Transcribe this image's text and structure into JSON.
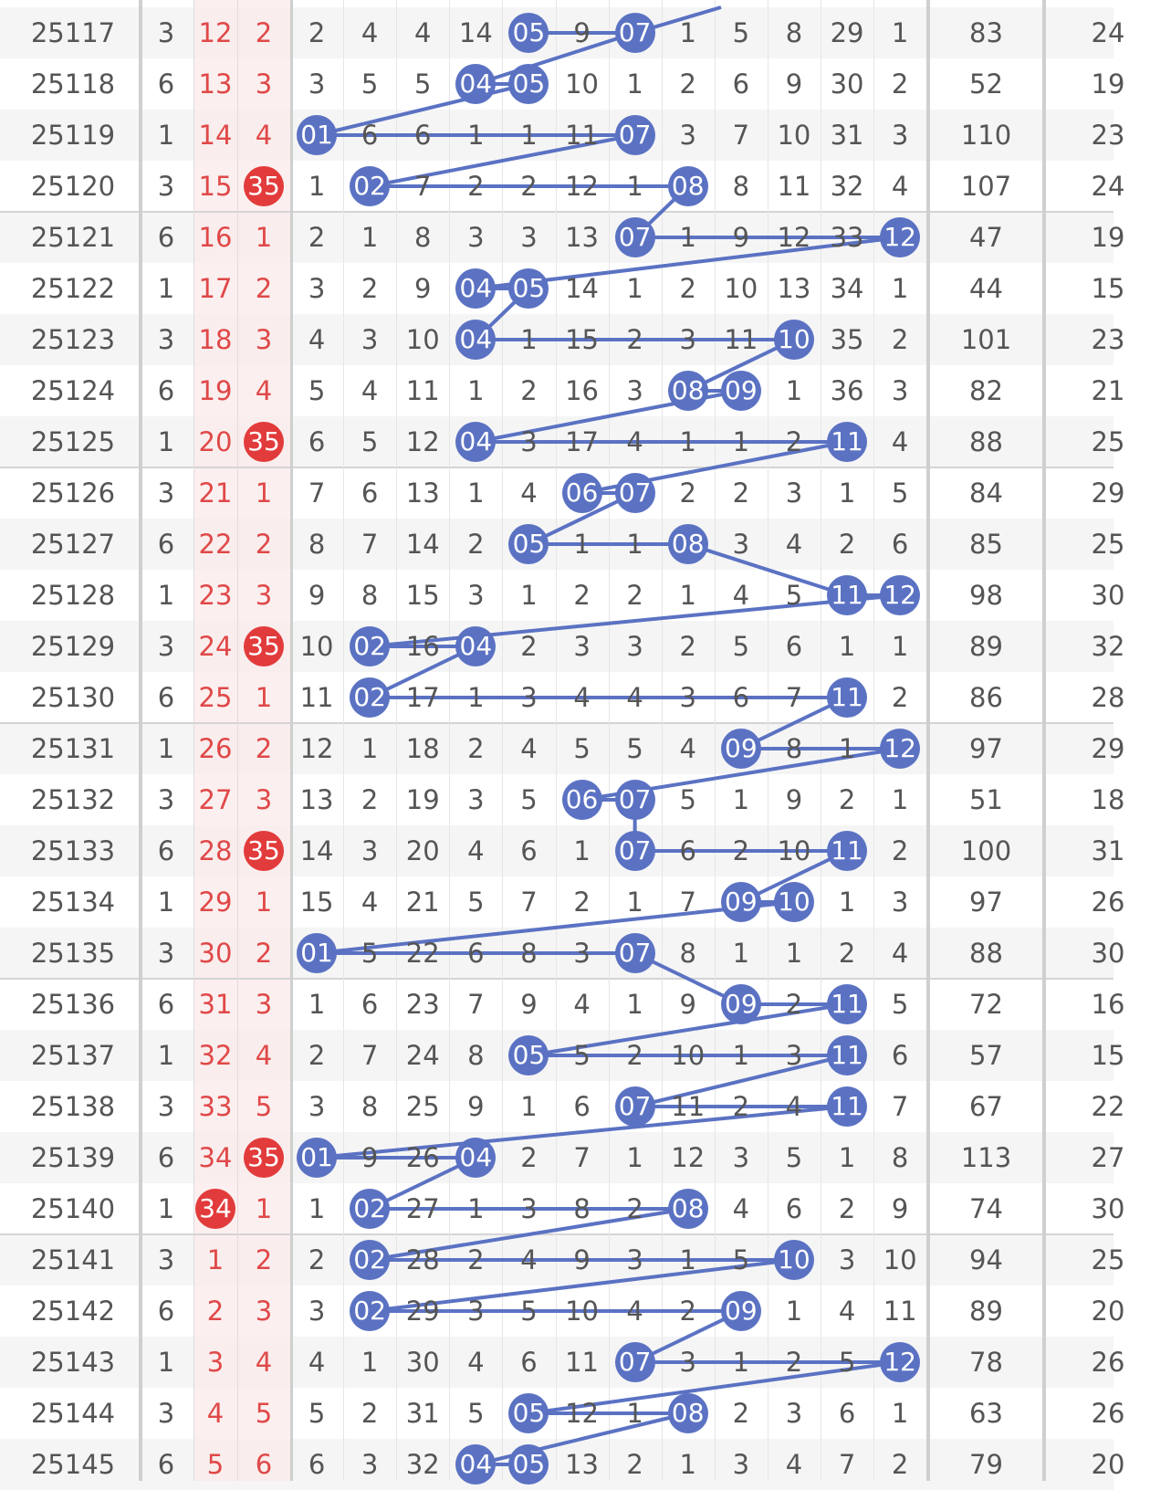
{
  "colors": {
    "blue_ball": "#5b72c3",
    "red_ball": "#e23b3b",
    "red_text": "#e04848",
    "pink_band": "#fbe9ea",
    "row_alt": "#f5f5f5",
    "text": "#555555",
    "line": "#5b72c3"
  },
  "rows": [
    {
      "issue": "25117",
      "a": "3",
      "b": "12",
      "c": "2",
      "hot": [
        1
      ],
      "cells": [
        "2",
        "4",
        "4",
        "14",
        "05",
        "9",
        "07",
        "1",
        "5",
        "8",
        "29",
        "1"
      ],
      "balls": [
        4,
        6
      ],
      "sum": "83",
      "tail": "24"
    },
    {
      "issue": "25118",
      "a": "6",
      "b": "13",
      "c": "3",
      "cells": [
        "3",
        "5",
        "5",
        "04",
        "05",
        "10",
        "1",
        "2",
        "6",
        "9",
        "30",
        "2"
      ],
      "balls": [
        3,
        4
      ],
      "sum": "52",
      "tail": "19"
    },
    {
      "issue": "25119",
      "a": "1",
      "b": "14",
      "c": "4",
      "cells": [
        "01",
        "6",
        "6",
        "1",
        "1",
        "11",
        "07",
        "3",
        "7",
        "10",
        "31",
        "3"
      ],
      "balls": [
        0,
        6
      ],
      "sum": "110",
      "tail": "23"
    },
    {
      "issue": "25120",
      "a": "3",
      "b": "15",
      "c": "35",
      "cBall": true,
      "cells": [
        "1",
        "02",
        "7",
        "2",
        "2",
        "12",
        "1",
        "08",
        "8",
        "11",
        "32",
        "4"
      ],
      "balls": [
        1,
        7
      ],
      "sum": "107",
      "tail": "24"
    },
    {
      "issue": "25121",
      "a": "6",
      "b": "16",
      "c": "1",
      "cells": [
        "2",
        "1",
        "8",
        "3",
        "3",
        "13",
        "07",
        "1",
        "9",
        "12",
        "33",
        "12"
      ],
      "balls": [
        6,
        11
      ],
      "sum": "47",
      "tail": "19"
    },
    {
      "issue": "25122",
      "a": "1",
      "b": "17",
      "c": "2",
      "cells": [
        "3",
        "2",
        "9",
        "04",
        "05",
        "14",
        "1",
        "2",
        "10",
        "13",
        "34",
        "1"
      ],
      "balls": [
        3,
        4
      ],
      "sum": "44",
      "tail": "15"
    },
    {
      "issue": "25123",
      "a": "3",
      "b": "18",
      "c": "3",
      "cells": [
        "4",
        "3",
        "10",
        "04",
        "1",
        "15",
        "2",
        "3",
        "11",
        "10",
        "35",
        "2"
      ],
      "balls": [
        3,
        9
      ],
      "sum": "101",
      "tail": "23"
    },
    {
      "issue": "25124",
      "a": "6",
      "b": "19",
      "c": "4",
      "cells": [
        "5",
        "4",
        "11",
        "1",
        "2",
        "16",
        "3",
        "08",
        "09",
        "1",
        "36",
        "3"
      ],
      "balls": [
        7,
        8
      ],
      "sum": "82",
      "tail": "21"
    },
    {
      "issue": "25125",
      "a": "1",
      "b": "20",
      "c": "35",
      "cBall": true,
      "cells": [
        "6",
        "5",
        "12",
        "04",
        "3",
        "17",
        "4",
        "1",
        "1",
        "2",
        "11",
        "4"
      ],
      "balls": [
        3,
        10
      ],
      "sum": "88",
      "tail": "25"
    },
    {
      "issue": "25126",
      "a": "3",
      "b": "21",
      "c": "1",
      "cells": [
        "7",
        "6",
        "13",
        "1",
        "4",
        "06",
        "07",
        "2",
        "2",
        "3",
        "1",
        "5"
      ],
      "balls": [
        5,
        6
      ],
      "sum": "84",
      "tail": "29"
    },
    {
      "issue": "25127",
      "a": "6",
      "b": "22",
      "c": "2",
      "cells": [
        "8",
        "7",
        "14",
        "2",
        "05",
        "1",
        "1",
        "08",
        "3",
        "4",
        "2",
        "6"
      ],
      "balls": [
        4,
        7
      ],
      "sum": "85",
      "tail": "25"
    },
    {
      "issue": "25128",
      "a": "1",
      "b": "23",
      "c": "3",
      "cells": [
        "9",
        "8",
        "15",
        "3",
        "1",
        "2",
        "2",
        "1",
        "4",
        "5",
        "11",
        "12"
      ],
      "balls": [
        10,
        11
      ],
      "sum": "98",
      "tail": "30"
    },
    {
      "issue": "25129",
      "a": "3",
      "b": "24",
      "c": "35",
      "cBall": true,
      "cells": [
        "10",
        "02",
        "16",
        "04",
        "2",
        "3",
        "3",
        "2",
        "5",
        "6",
        "1",
        "1"
      ],
      "balls": [
        1,
        3
      ],
      "sum": "89",
      "tail": "32"
    },
    {
      "issue": "25130",
      "a": "6",
      "b": "25",
      "c": "1",
      "cells": [
        "11",
        "02",
        "17",
        "1",
        "3",
        "4",
        "4",
        "3",
        "6",
        "7",
        "11",
        "2"
      ],
      "balls": [
        1,
        10
      ],
      "sum": "86",
      "tail": "28"
    },
    {
      "issue": "25131",
      "a": "1",
      "b": "26",
      "c": "2",
      "cells": [
        "12",
        "1",
        "18",
        "2",
        "4",
        "5",
        "5",
        "4",
        "09",
        "8",
        "1",
        "12"
      ],
      "balls": [
        8,
        11
      ],
      "sum": "97",
      "tail": "29"
    },
    {
      "issue": "25132",
      "a": "3",
      "b": "27",
      "c": "3",
      "cells": [
        "13",
        "2",
        "19",
        "3",
        "5",
        "06",
        "07",
        "5",
        "1",
        "9",
        "2",
        "1"
      ],
      "balls": [
        5,
        6
      ],
      "sum": "51",
      "tail": "18"
    },
    {
      "issue": "25133",
      "a": "6",
      "b": "28",
      "c": "35",
      "cBall": true,
      "cells": [
        "14",
        "3",
        "20",
        "4",
        "6",
        "1",
        "07",
        "6",
        "2",
        "10",
        "11",
        "2"
      ],
      "balls": [
        6,
        10
      ],
      "sum": "100",
      "tail": "31"
    },
    {
      "issue": "25134",
      "a": "1",
      "b": "29",
      "c": "1",
      "cells": [
        "15",
        "4",
        "21",
        "5",
        "7",
        "2",
        "1",
        "7",
        "09",
        "10",
        "1",
        "3"
      ],
      "balls": [
        8,
        9
      ],
      "sum": "97",
      "tail": "26"
    },
    {
      "issue": "25135",
      "a": "3",
      "b": "30",
      "c": "2",
      "cells": [
        "01",
        "5",
        "22",
        "6",
        "8",
        "3",
        "07",
        "8",
        "1",
        "1",
        "2",
        "4"
      ],
      "balls": [
        0,
        6
      ],
      "sum": "88",
      "tail": "30"
    },
    {
      "issue": "25136",
      "a": "6",
      "b": "31",
      "c": "3",
      "cells": [
        "1",
        "6",
        "23",
        "7",
        "9",
        "4",
        "1",
        "9",
        "09",
        "2",
        "11",
        "5"
      ],
      "balls": [
        8,
        10
      ],
      "sum": "72",
      "tail": "16"
    },
    {
      "issue": "25137",
      "a": "1",
      "b": "32",
      "c": "4",
      "cells": [
        "2",
        "7",
        "24",
        "8",
        "05",
        "5",
        "2",
        "10",
        "1",
        "3",
        "11",
        "6"
      ],
      "balls": [
        4,
        10
      ],
      "sum": "57",
      "tail": "15"
    },
    {
      "issue": "25138",
      "a": "3",
      "b": "33",
      "c": "5",
      "cells": [
        "3",
        "8",
        "25",
        "9",
        "1",
        "6",
        "07",
        "11",
        "2",
        "4",
        "11",
        "7"
      ],
      "balls": [
        6,
        10
      ],
      "sum": "67",
      "tail": "22"
    },
    {
      "issue": "25139",
      "a": "6",
      "b": "34",
      "c": "35",
      "cBall": true,
      "cells": [
        "01",
        "9",
        "26",
        "04",
        "2",
        "7",
        "1",
        "12",
        "3",
        "5",
        "1",
        "8"
      ],
      "balls": [
        0,
        3
      ],
      "sum": "113",
      "tail": "27"
    },
    {
      "issue": "25140",
      "a": "1",
      "b": "34",
      "bBall": true,
      "c": "1",
      "cells": [
        "1",
        "02",
        "27",
        "1",
        "3",
        "8",
        "2",
        "08",
        "4",
        "6",
        "2",
        "9"
      ],
      "balls": [
        1,
        7
      ],
      "sum": "74",
      "tail": "30"
    },
    {
      "issue": "25141",
      "a": "3",
      "b": "1",
      "c": "2",
      "cells": [
        "2",
        "02",
        "28",
        "2",
        "4",
        "9",
        "3",
        "1",
        "5",
        "10",
        "3",
        "10"
      ],
      "balls": [
        1,
        9
      ],
      "sum": "94",
      "tail": "25"
    },
    {
      "issue": "25142",
      "a": "6",
      "b": "2",
      "c": "3",
      "cells": [
        "3",
        "02",
        "29",
        "3",
        "5",
        "10",
        "4",
        "2",
        "09",
        "1",
        "4",
        "11"
      ],
      "balls": [
        1,
        8
      ],
      "sum": "89",
      "tail": "20"
    },
    {
      "issue": "25143",
      "a": "1",
      "b": "3",
      "c": "4",
      "cells": [
        "4",
        "1",
        "30",
        "4",
        "6",
        "11",
        "07",
        "3",
        "1",
        "2",
        "5",
        "12"
      ],
      "balls": [
        6,
        11
      ],
      "sum": "78",
      "tail": "26"
    },
    {
      "issue": "25144",
      "a": "3",
      "b": "4",
      "c": "5",
      "cells": [
        "5",
        "2",
        "31",
        "5",
        "05",
        "12",
        "1",
        "08",
        "2",
        "3",
        "6",
        "1"
      ],
      "balls": [
        4,
        7
      ],
      "sum": "63",
      "tail": "26"
    },
    {
      "issue": "25145",
      "a": "6",
      "b": "5",
      "c": "6",
      "cells": [
        "6",
        "3",
        "32",
        "04",
        "05",
        "13",
        "2",
        "1",
        "3",
        "4",
        "7",
        "2"
      ],
      "balls": [
        3,
        4
      ],
      "sum": "79",
      "tail": "20"
    }
  ]
}
